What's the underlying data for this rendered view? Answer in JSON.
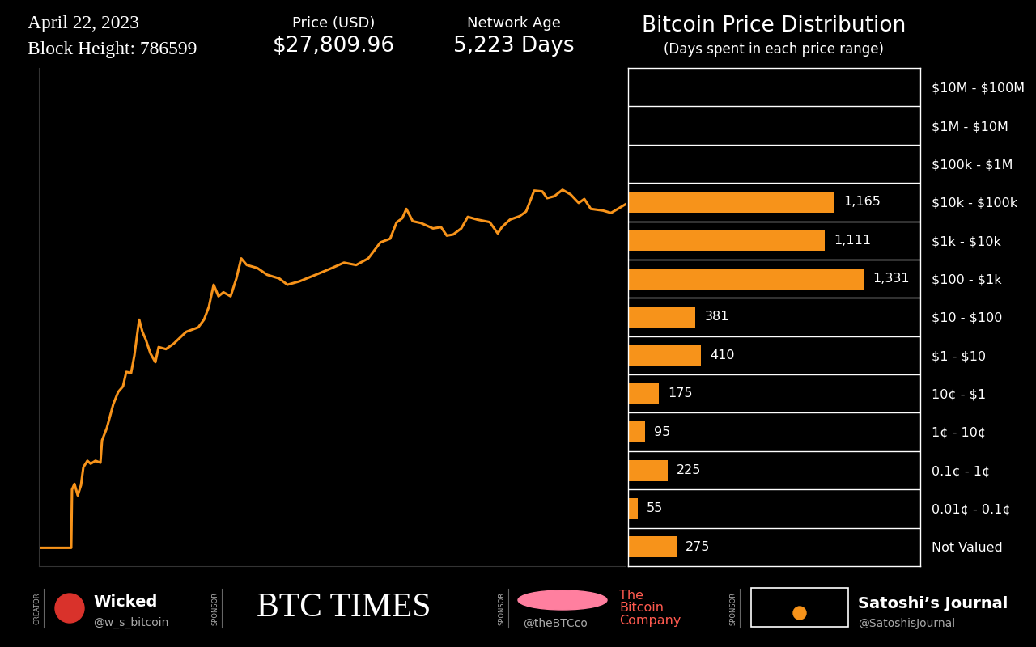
{
  "header": {
    "date": "April 22, 2023",
    "block_height": "Block Height: 786599",
    "price_label": "Price (USD)",
    "price": "$27,809.96",
    "age_label": "Network Age",
    "age": "5,223 Days"
  },
  "chart_data": [
    {
      "type": "line",
      "color": "#f7931a",
      "log": "y",
      "tick_labels": false,
      "xlim": [
        0,
        5223
      ],
      "ylim": [
        1e-05,
        100000000
      ],
      "xticks": [],
      "yticks": [],
      "x": [
        0,
        288,
        295,
        317,
        346,
        375,
        396,
        432,
        461,
        504,
        548,
        562,
        605,
        663,
        706,
        749,
        778,
        821,
        850,
        893,
        922,
        951,
        994,
        1037,
        1066,
        1131,
        1203,
        1311,
        1419,
        1470,
        1513,
        1556,
        1599,
        1643,
        1707,
        1758,
        1801,
        1851,
        1945,
        2032,
        2140,
        2212,
        2320,
        2464,
        2608,
        2716,
        2824,
        2932,
        3040,
        3127,
        3184,
        3235,
        3271,
        3328,
        3400,
        3508,
        3580,
        3631,
        3688,
        3760,
        3818,
        3905,
        4013,
        4085,
        4121,
        4193,
        4279,
        4337,
        4409,
        4481,
        4524,
        4589,
        4661,
        4733,
        4805,
        4855,
        4913,
        5021,
        5093,
        5165,
        5223
      ],
      "values": [
        3e-05,
        3e-05,
        0.001,
        0.0014,
        0.0007,
        0.0013,
        0.0038,
        0.0056,
        0.0047,
        0.0056,
        0.005,
        0.019,
        0.04,
        0.17,
        0.35,
        0.49,
        1.17,
        1.1,
        3.1,
        27,
        13,
        8.3,
        3.5,
        2.1,
        5.2,
        4.6,
        6.5,
        13,
        17,
        27,
        58,
        220,
        110,
        140,
        110,
        320,
        1070,
        720,
        600,
        400,
        320,
        220,
        270,
        400,
        600,
        830,
        720,
        1070,
        2800,
        3500,
        9300,
        12000,
        21000,
        10000,
        9000,
        6500,
        7000,
        4200,
        4500,
        6500,
        13000,
        11000,
        9500,
        4800,
        7000,
        11000,
        13500,
        18000,
        63000,
        60000,
        40000,
        45000,
        66000,
        50000,
        30000,
        38000,
        21000,
        19000,
        16500,
        22000,
        27810
      ]
    },
    {
      "type": "bar",
      "orientation": "horizontal",
      "title": "Bitcoin Price Distribution",
      "subtitle": "(Days spent in each price range)",
      "color": "#f7931a",
      "grid": true,
      "data_labels": true,
      "tick_labels": "y",
      "xlim": [
        0,
        1650
      ],
      "xticks": [],
      "categories": [
        "$10M - $100M",
        "$1M - $10M",
        "$100k - $1M",
        "$10k - $100k",
        "$1k - $10k",
        "$100 - $1k",
        "$10 - $100",
        "$1 - $10",
        "10¢ - $1",
        "1¢ - 10¢",
        "0.1¢ - 1¢",
        "0.01¢ - 0.1¢",
        "Not Valued"
      ],
      "values": [
        null,
        null,
        null,
        1165,
        1111,
        1331,
        381,
        410,
        175,
        95,
        225,
        55,
        275
      ],
      "value_labels": [
        null,
        null,
        null,
        "1,165",
        "1,111",
        "1,331",
        "381",
        "410",
        "175",
        "95",
        "225",
        "55",
        "275"
      ]
    }
  ],
  "footer": [
    {
      "role": "CREATOR",
      "name": "Wicked",
      "handle": "@w_s_bitcoin"
    },
    {
      "role": "SPONSOR",
      "name": "BTC TIMES"
    },
    {
      "role": "SPONSOR",
      "name": "The Bitcoin Company",
      "handle": "@theBTCco"
    },
    {
      "role": "SPONSOR",
      "name": "Satoshi’s Journal",
      "handle": "@SatoshisJournal"
    }
  ]
}
